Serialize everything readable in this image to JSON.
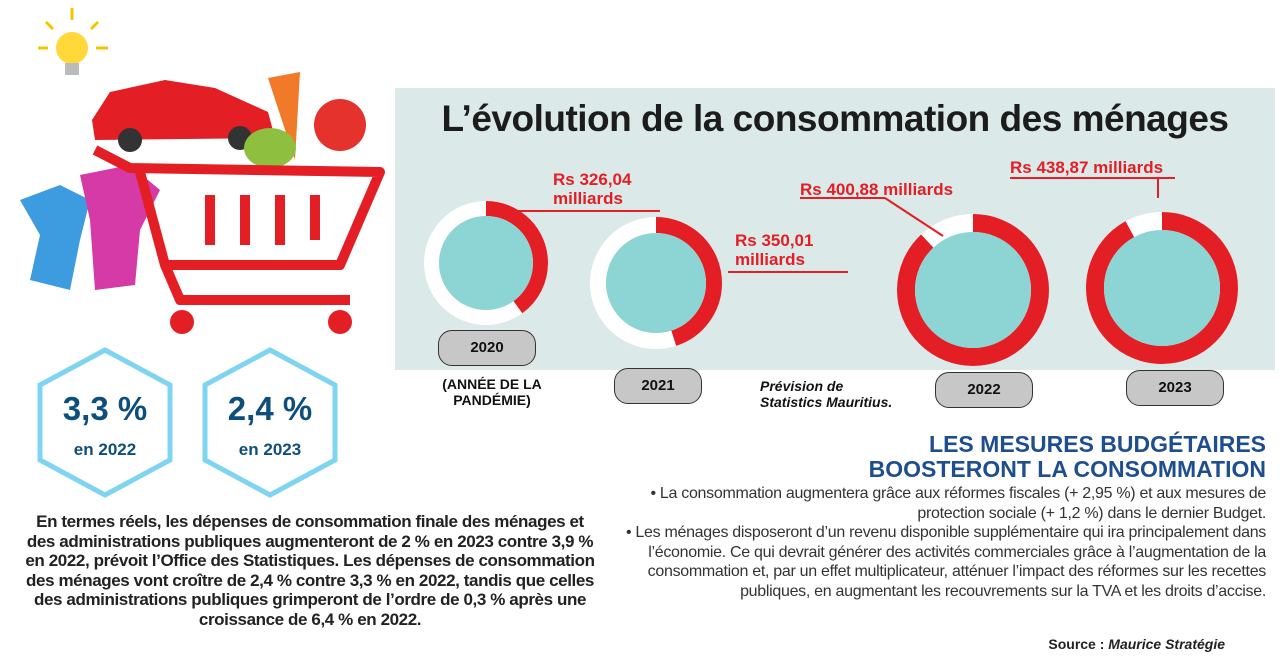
{
  "title": "L’évolution de la consommation des ménages",
  "chart_data": {
    "type": "donut",
    "title": "L’évolution de la consommation des ménages",
    "categories": [
      "2020",
      "2021",
      "2022",
      "2023"
    ],
    "values_rs_milliards": [
      326.04,
      350.01,
      400.88,
      438.87
    ],
    "ring_fill_fraction": [
      0.4,
      0.45,
      0.88,
      0.92
    ],
    "labels": [
      "Rs 326,04 milliards",
      "Rs 350,01 milliards",
      "Rs 400,88 milliards",
      "Rs 438,87 milliards"
    ],
    "label_lines": [
      [
        "Rs 326,04",
        "milliards"
      ],
      [
        "Rs 350,01",
        "milliards"
      ],
      [
        "Rs 400,88 milliards"
      ],
      [
        "Rs 438,87 milliards"
      ]
    ],
    "notes": {
      "pandemic_line1": "(ANNÉE DE LA",
      "pandemic_line2": "PANDÉMIE)",
      "forecast_line1": "Prévision de",
      "forecast_line2": "Statistics Mauritius."
    },
    "colors": {
      "ring": "#e31e24",
      "ring_bg": "#ffffff",
      "inner": "#8dd4d4"
    }
  },
  "hexagons": [
    {
      "value": "3,3 %",
      "sub": "en 2022"
    },
    {
      "value": "2,4 %",
      "sub": "en 2023"
    }
  ],
  "left_text": "En termes réels, les dépenses de consommation finale des ménages et des administrations publiques augmenteront de 2 % en 2023 contre 3,9 % en 2022, prévoit l’Office des Statistiques. Les dépenses de consommation des ménages vont croître de 2,4 % contre 3,3 % en 2022, tandis que celles des administrations publiques grimperont de l’ordre de 0,3 % après une croissance de 6,4 % en 2022.",
  "right": {
    "heading_line1": "LES MESURES BUDGÉTAIRES",
    "heading_line2": "BOOSTERONT LA CONSOMMATION",
    "bullet1": "• La consommation augmentera grâce aux réformes fiscales (+ 2,95 %) et aux mesures de protection sociale (+ 1,2 %) dans le dernier Budget.",
    "bullet2": "• Les ménages disposeront d’un revenu disponible supplémentaire qui ira principalement dans l’économie. Ce qui devrait générer des activités commerciales grâce à l’augmentation de la consommation et, par un effet multiplicateur, atténuer l’impact des réformes sur les recettes publiques, en augmentant les recouvrements sur la TVA et les droits d’accise."
  },
  "source_label": "Source : ",
  "source_name": "Maurice Stratégie"
}
